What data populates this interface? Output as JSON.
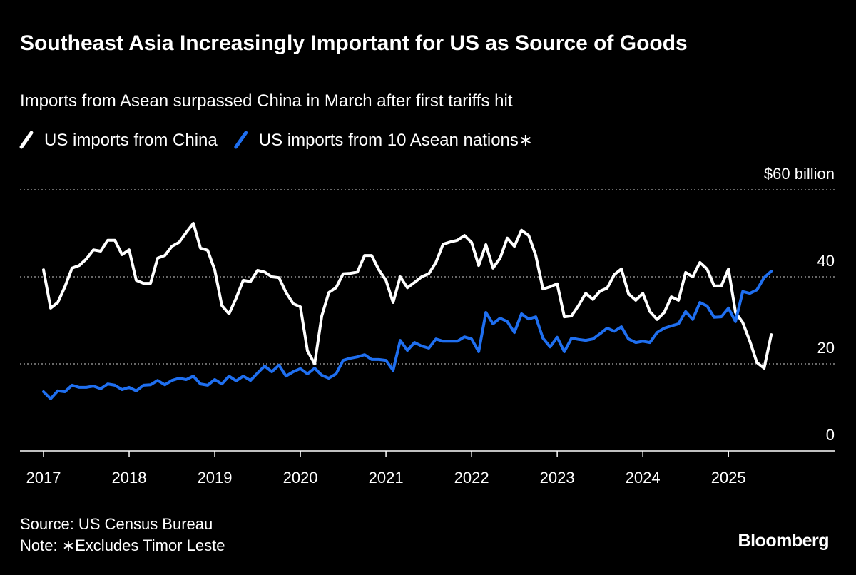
{
  "chart_data": {
    "type": "line",
    "title": "Southeast Asia Increasingly Important for US as Source of Goods",
    "subtitle": "Imports from Asean surpassed China in March after first tariffs hit",
    "source": "Source: US Census Bureau",
    "note": "Note: ∗Excludes Timor Leste",
    "brand": "Bloomberg",
    "x": [
      2017,
      2017.083,
      2017.167,
      2017.25,
      2017.333,
      2017.417,
      2017.5,
      2017.583,
      2017.667,
      2017.75,
      2017.833,
      2017.917,
      2018,
      2018.083,
      2018.167,
      2018.25,
      2018.333,
      2018.417,
      2018.5,
      2018.583,
      2018.667,
      2018.75,
      2018.833,
      2018.917,
      2019,
      2019.083,
      2019.167,
      2019.25,
      2019.333,
      2019.417,
      2019.5,
      2019.583,
      2019.667,
      2019.75,
      2019.833,
      2019.917,
      2020,
      2020.083,
      2020.167,
      2020.25,
      2020.333,
      2020.417,
      2020.5,
      2020.583,
      2020.667,
      2020.75,
      2020.833,
      2020.917,
      2021,
      2021.083,
      2021.167,
      2021.25,
      2021.333,
      2021.417,
      2021.5,
      2021.583,
      2021.667,
      2021.75,
      2021.833,
      2021.917,
      2022,
      2022.083,
      2022.167,
      2022.25,
      2022.333,
      2022.417,
      2022.5,
      2022.583,
      2022.667,
      2022.75,
      2022.833,
      2022.917,
      2023,
      2023.083,
      2023.167,
      2023.25,
      2023.333,
      2023.417,
      2023.5,
      2023.583,
      2023.667,
      2023.75,
      2023.833,
      2023.917,
      2024,
      2024.083,
      2024.167,
      2024.25,
      2024.333,
      2024.417,
      2024.5,
      2024.583,
      2024.667,
      2024.75,
      2024.833,
      2024.917,
      2025,
      2025.083,
      2025.167,
      2025.25,
      2025.333,
      2025.417,
      2025.5
    ],
    "series": [
      {
        "name": "US imports from China",
        "color": "#ffffff",
        "values": [
          41.6,
          32.8,
          34.1,
          37.7,
          42.0,
          42.6,
          44.1,
          46.2,
          45.9,
          48.4,
          48.4,
          45.1,
          46.2,
          39.2,
          38.5,
          38.5,
          44.3,
          44.9,
          47.0,
          47.9,
          50.2,
          52.3,
          46.6,
          46.1,
          41.6,
          33.4,
          31.5,
          35.1,
          39.2,
          38.9,
          41.5,
          41.1,
          40.0,
          39.8,
          36.4,
          33.8,
          33.1,
          23.0,
          20.0,
          31.0,
          36.4,
          37.5,
          40.7,
          40.8,
          41.1,
          44.9,
          44.9,
          41.6,
          39.2,
          34.1,
          40.0,
          37.5,
          38.7,
          40.0,
          40.7,
          43.3,
          47.5,
          48.0,
          48.4,
          49.5,
          47.9,
          42.6,
          47.4,
          42.0,
          44.3,
          48.9,
          47.0,
          50.7,
          49.5,
          44.9,
          37.2,
          37.7,
          38.4,
          30.8,
          31.0,
          33.4,
          36.2,
          34.8,
          36.7,
          37.4,
          40.5,
          41.8,
          36.1,
          34.6,
          36.2,
          32.0,
          30.2,
          31.8,
          35.4,
          34.6,
          41.0,
          40.0,
          43.3,
          41.8,
          37.9,
          37.9,
          41.8,
          31.8,
          29.5,
          25.2,
          20.3,
          19.0,
          26.7
        ]
      },
      {
        "name": "US imports from 10 Asean nations∗",
        "color": "#1f6ff0",
        "values": [
          13.6,
          12.0,
          13.8,
          13.6,
          15.1,
          14.6,
          14.6,
          14.9,
          14.3,
          15.4,
          15.1,
          14.1,
          14.6,
          13.8,
          15.1,
          15.2,
          16.2,
          15.2,
          16.2,
          16.7,
          16.4,
          17.2,
          15.4,
          15.1,
          16.4,
          15.4,
          17.2,
          16.1,
          17.2,
          16.2,
          17.9,
          19.5,
          18.2,
          19.7,
          17.2,
          18.2,
          18.9,
          17.7,
          19.0,
          17.4,
          16.7,
          17.7,
          20.8,
          21.3,
          21.6,
          22.1,
          21.0,
          21.0,
          20.8,
          18.5,
          25.4,
          23.1,
          24.9,
          24.1,
          23.6,
          25.7,
          25.2,
          25.2,
          25.2,
          26.2,
          25.7,
          22.8,
          31.8,
          29.2,
          30.5,
          29.7,
          27.2,
          31.5,
          30.3,
          30.8,
          25.9,
          23.9,
          26.1,
          22.8,
          25.9,
          25.6,
          25.4,
          25.7,
          26.9,
          28.2,
          27.5,
          28.5,
          25.7,
          24.9,
          25.2,
          24.9,
          27.2,
          28.2,
          28.7,
          29.2,
          32.0,
          30.2,
          34.1,
          33.3,
          30.7,
          30.8,
          32.8,
          29.7,
          36.6,
          36.2,
          37.0,
          39.8,
          41.3
        ]
      }
    ],
    "xlim": [
      2016.725,
      2026.24
    ],
    "xticks": [
      2017,
      2018,
      2019,
      2020,
      2021,
      2022,
      2023,
      2024,
      2025
    ],
    "ylim": [
      0,
      60
    ],
    "yticks": [
      0,
      20,
      40,
      {
        "value": 60,
        "label": "$60 billion"
      }
    ],
    "grid": true
  }
}
